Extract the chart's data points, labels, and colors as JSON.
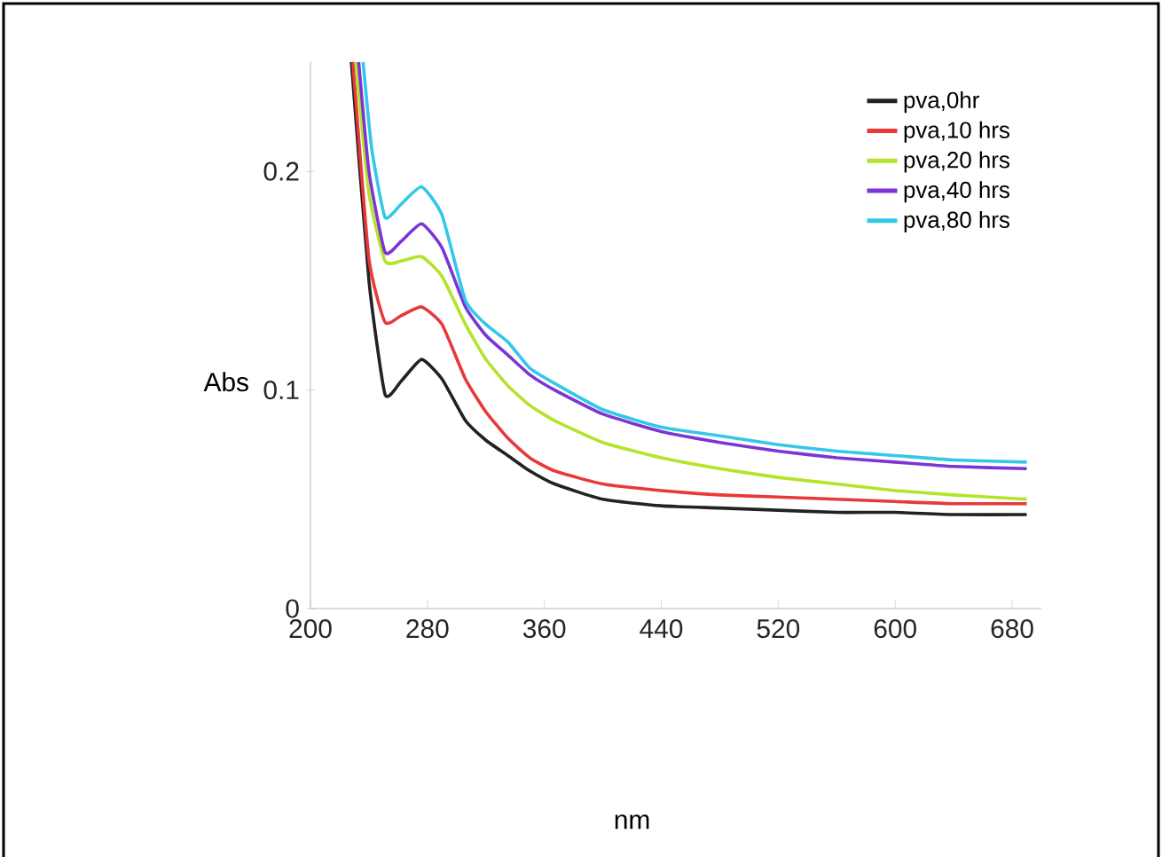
{
  "chart_data": {
    "type": "line",
    "annotations": [
      "nm"
    ],
    "ylabel": "Abs",
    "series": [
      {
        "name": "pva,0hr",
        "color": "#222222",
        "x": [
          228,
          240,
          251,
          262,
          276,
          290,
          306,
          320,
          335,
          350,
          367,
          400,
          440,
          480,
          520,
          560,
          600,
          640,
          690
        ],
        "values": [
          0.25,
          0.15,
          0.098,
          0.104,
          0.114,
          0.105,
          0.086,
          0.077,
          0.07,
          0.063,
          0.057,
          0.05,
          0.047,
          0.046,
          0.045,
          0.044,
          0.044,
          0.043,
          0.043
        ]
      },
      {
        "name": "pva,10 hrs",
        "color": "#e8393a",
        "x": [
          229,
          240,
          251,
          262,
          276,
          290,
          306,
          320,
          335,
          350,
          367,
          400,
          440,
          480,
          520,
          560,
          600,
          640,
          690
        ],
        "values": [
          0.25,
          0.16,
          0.131,
          0.134,
          0.138,
          0.13,
          0.105,
          0.09,
          0.078,
          0.069,
          0.063,
          0.057,
          0.054,
          0.052,
          0.051,
          0.05,
          0.049,
          0.048,
          0.048
        ]
      },
      {
        "name": "pva,20 hrs",
        "color": "#b5e32a",
        "x": [
          231,
          240,
          251,
          262,
          276,
          290,
          306,
          320,
          335,
          350,
          367,
          400,
          440,
          480,
          520,
          560,
          600,
          640,
          690
        ],
        "values": [
          0.25,
          0.19,
          0.159,
          0.159,
          0.161,
          0.152,
          0.13,
          0.114,
          0.102,
          0.093,
          0.086,
          0.076,
          0.069,
          0.064,
          0.06,
          0.057,
          0.054,
          0.052,
          0.05
        ]
      },
      {
        "name": "pva,40 hrs",
        "color": "#7b35d6",
        "x": [
          233,
          240,
          251,
          262,
          276,
          290,
          306,
          320,
          335,
          350,
          367,
          400,
          440,
          480,
          520,
          560,
          600,
          640,
          690
        ],
        "values": [
          0.25,
          0.2,
          0.163,
          0.168,
          0.176,
          0.165,
          0.138,
          0.125,
          0.116,
          0.107,
          0.1,
          0.089,
          0.081,
          0.076,
          0.072,
          0.069,
          0.067,
          0.065,
          0.064
        ]
      },
      {
        "name": "pva,80 hrs",
        "color": "#33c8e8",
        "x": [
          236,
          242,
          251,
          262,
          276,
          290,
          306,
          320,
          335,
          350,
          367,
          400,
          440,
          480,
          520,
          560,
          600,
          640,
          690
        ],
        "values": [
          0.25,
          0.21,
          0.179,
          0.185,
          0.193,
          0.18,
          0.141,
          0.13,
          0.122,
          0.11,
          0.103,
          0.091,
          0.083,
          0.079,
          0.075,
          0.072,
          0.07,
          0.068,
          0.067
        ]
      }
    ],
    "xlim": [
      200,
      700
    ],
    "xticks": [
      200,
      280,
      360,
      440,
      520,
      600,
      680
    ],
    "ylim": [
      0,
      0.25
    ],
    "yticks": [
      0,
      0.1,
      0.2
    ],
    "grid": false,
    "legend": "top right",
    "marker": "none",
    "line_style": "solid"
  }
}
